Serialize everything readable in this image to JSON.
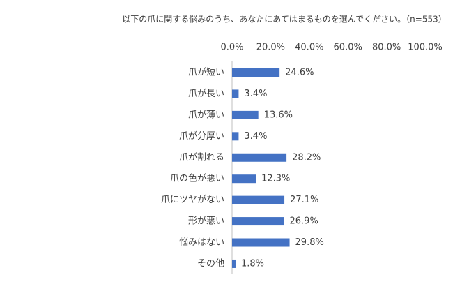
{
  "chart_data": {
    "type": "bar",
    "orientation": "horizontal",
    "title": "以下の爪に関する悩みのうち、あなたにあてはまるものを選んでください。（n=553）",
    "categories": [
      "爪が短い",
      "爪が長い",
      "爪が薄い",
      "爪が分厚い",
      "爪が割れる",
      "爪の色が悪い",
      "爪にツヤがない",
      "形が悪い",
      "悩みはない",
      "その他"
    ],
    "values": [
      24.6,
      3.4,
      13.6,
      3.4,
      28.2,
      12.3,
      27.1,
      26.9,
      29.8,
      1.8
    ],
    "value_labels": [
      "24.6%",
      "3.4%",
      "13.6%",
      "3.4%",
      "28.2%",
      "12.3%",
      "27.1%",
      "26.9%",
      "29.8%",
      "1.8%"
    ],
    "color": "#4472c4",
    "xlim": [
      0,
      100
    ],
    "xticks": [
      {
        "value": 0,
        "label": "0.0%"
      },
      {
        "value": 20,
        "label": "20.0%"
      },
      {
        "value": 40,
        "label": "40.0%"
      },
      {
        "value": 60,
        "label": "60.0%"
      },
      {
        "value": 80,
        "label": "80.0%"
      },
      {
        "value": 100,
        "label": "100.0%"
      }
    ],
    "grid": false
  }
}
